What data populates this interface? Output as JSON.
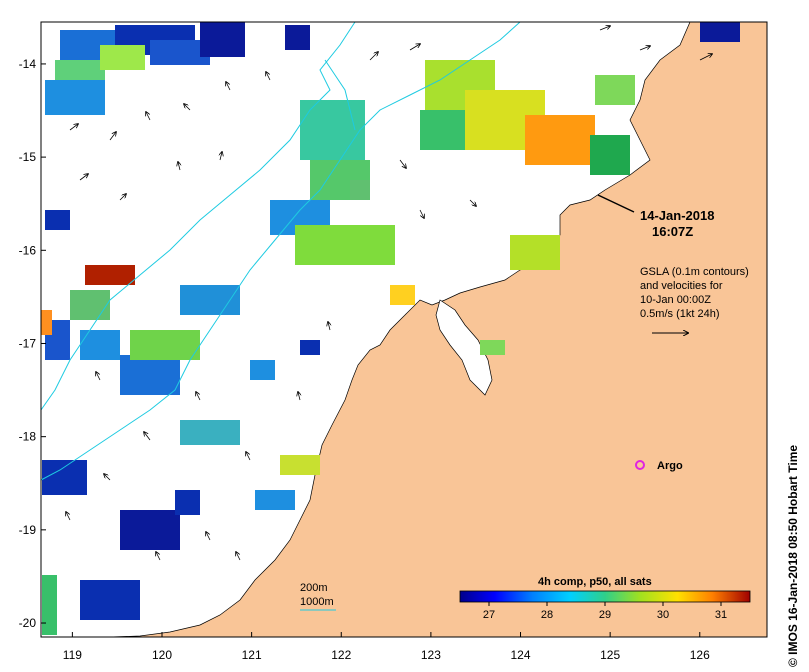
{
  "map": {
    "lon_ticks": [
      "119",
      "120",
      "121",
      "122",
      "123",
      "124",
      "125",
      "126"
    ],
    "lat_ticks": [
      "-14",
      "-15",
      "-16",
      "-17",
      "-18",
      "-19",
      "-20"
    ],
    "lon_range": [
      118.65,
      126.75
    ],
    "lat_range": [
      -20.15,
      -13.55
    ],
    "timestamp_date": "14-Jan-2018",
    "timestamp_time": "16:07Z",
    "gsla_note": [
      "GSLA (0.1m contours)",
      "and velocities for",
      "10-Jan 00:00Z",
      "0.5m/s (1kt 24h)"
    ],
    "argo_label": "Argo",
    "bathymetry_legend": [
      "200m",
      "1000m"
    ],
    "colorbar_title": "4h comp, p50, all sats",
    "colorbar_ticks": [
      "27",
      "28",
      "29",
      "30",
      "31"
    ],
    "colorbar_range": [
      26.5,
      31.5
    ],
    "credit": "© IMOS 16-Jan-2018 08:50 Hobart Time",
    "colors": {
      "land": "#f9c597",
      "ocean": "#ffffff",
      "contour_200m": "#1ecbe1",
      "contour_1000m": "#1ecbe1",
      "argo_marker": "#e025e0"
    }
  }
}
